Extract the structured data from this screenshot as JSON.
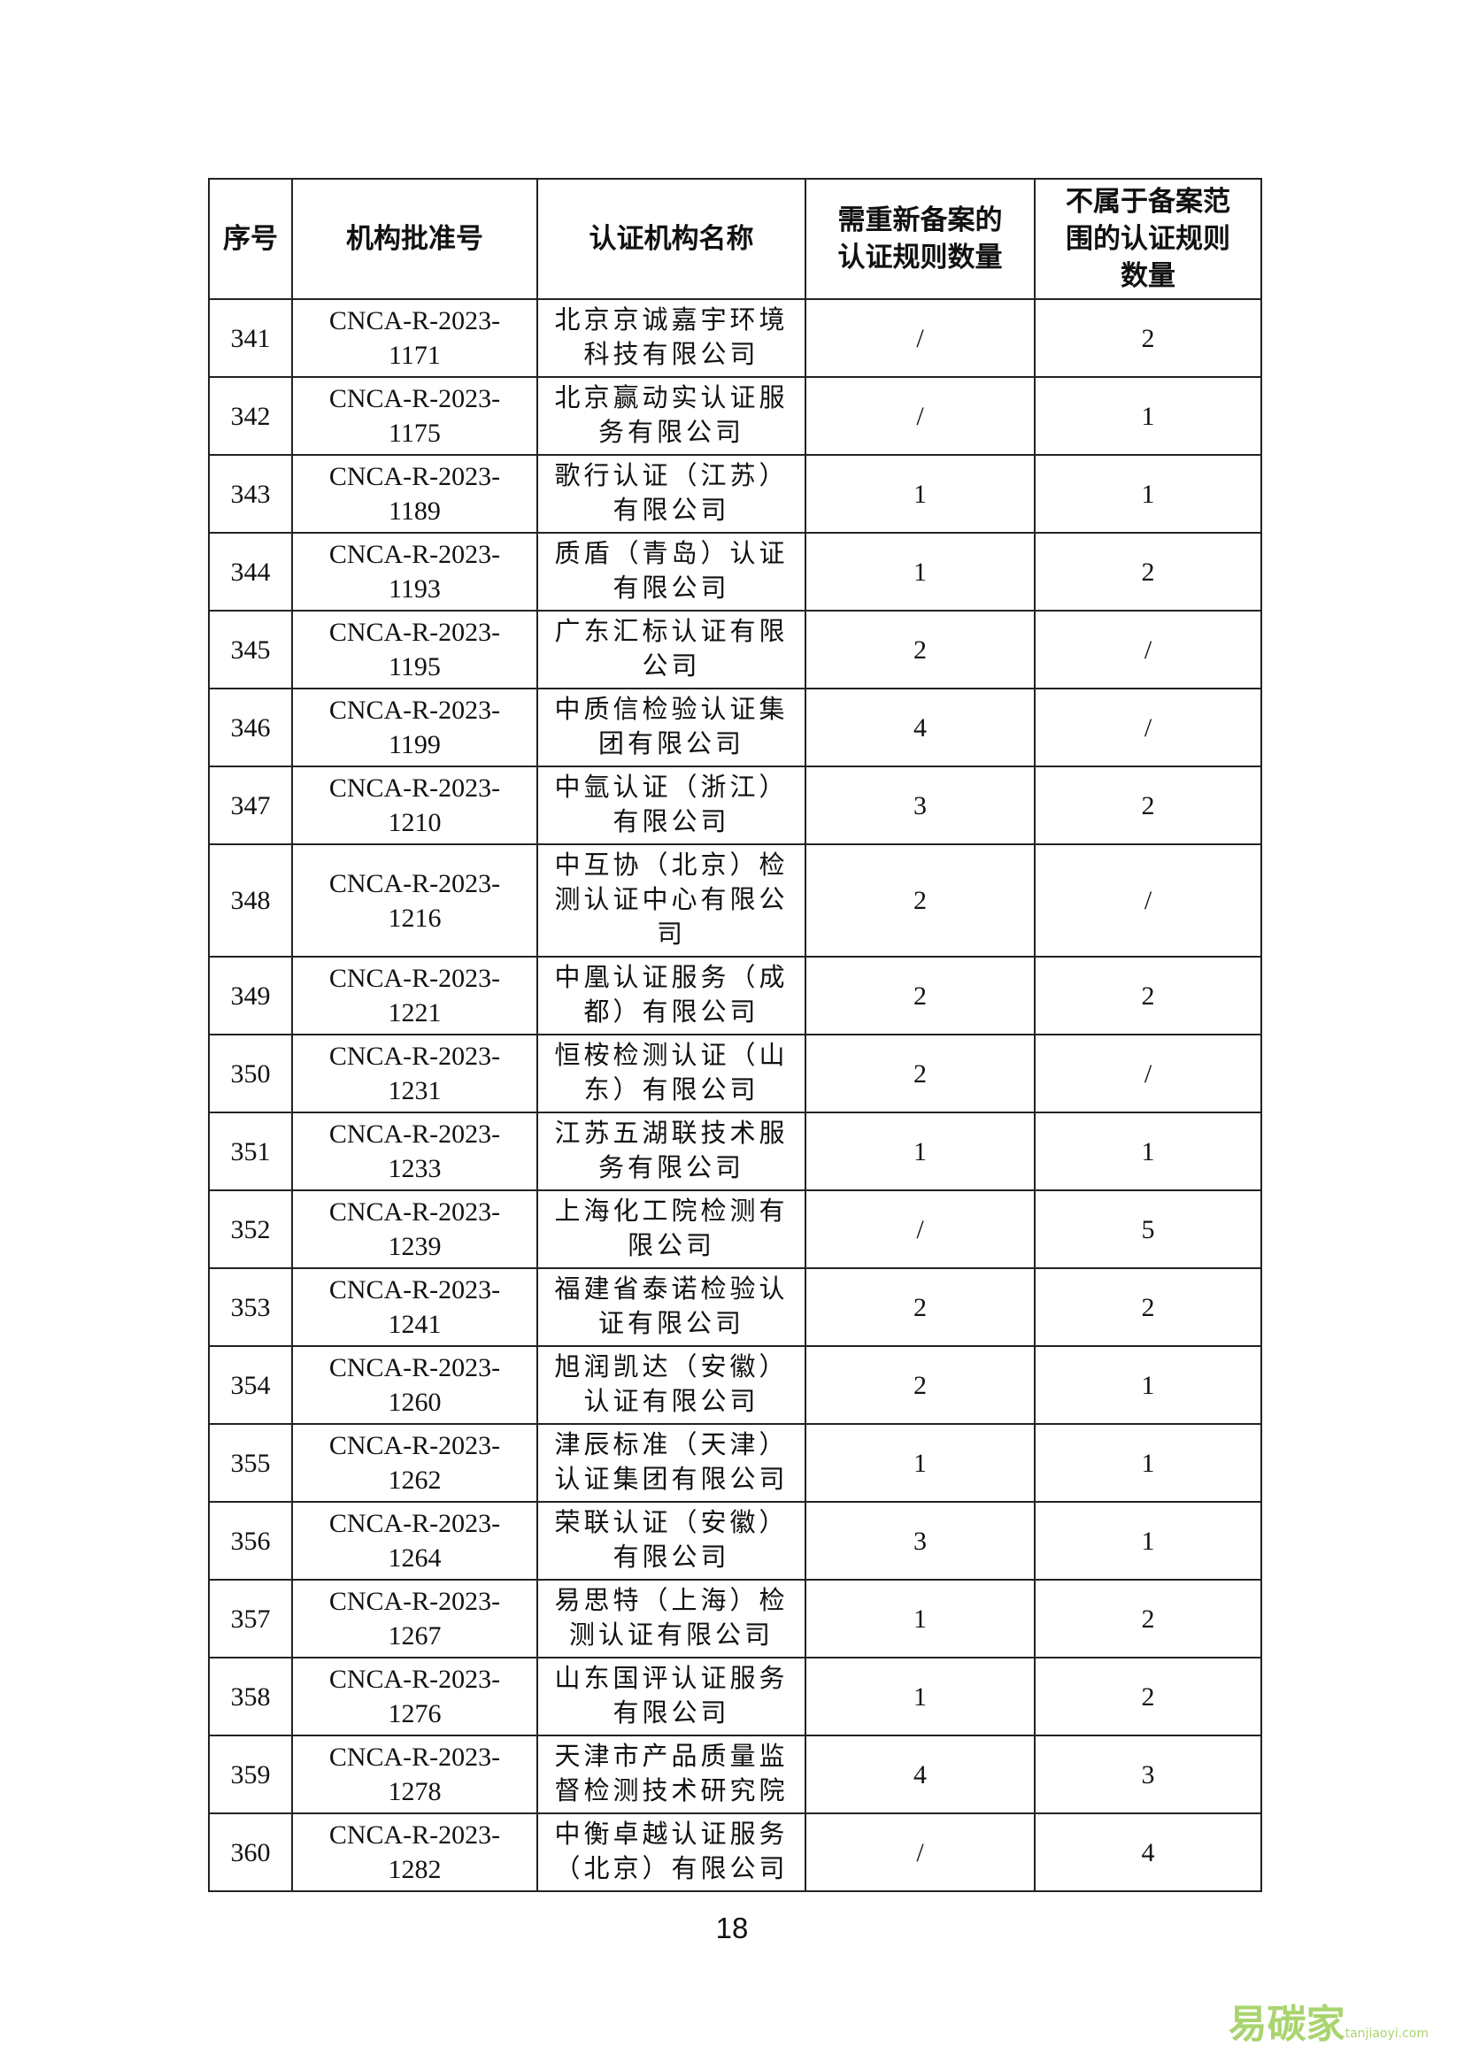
{
  "table": {
    "header": [
      "序号",
      "机构批准号",
      "认证机构名称",
      "需重新备案的认证规则数量",
      "不属于备案范围的认证规则数量"
    ],
    "rows": [
      [
        "341",
        "CNCA-R-2023-1171",
        "北京京诚嘉宇环境科技有限公司",
        "/",
        "2"
      ],
      [
        "342",
        "CNCA-R-2023-1175",
        "北京赢动实认证服务有限公司",
        "/",
        "1"
      ],
      [
        "343",
        "CNCA-R-2023-1189",
        "歌行认证（江苏）有限公司",
        "1",
        "1"
      ],
      [
        "344",
        "CNCA-R-2023-1193",
        "质盾（青岛）认证有限公司",
        "1",
        "2"
      ],
      [
        "345",
        "CNCA-R-2023-1195",
        "广东汇标认证有限公司",
        "2",
        "/"
      ],
      [
        "346",
        "CNCA-R-2023-1199",
        "中质信检验认证集团有限公司",
        "4",
        "/"
      ],
      [
        "347",
        "CNCA-R-2023-1210",
        "中氩认证（浙江）有限公司",
        "3",
        "2"
      ],
      [
        "348",
        "CNCA-R-2023-1216",
        "中互协（北京）检测认证中心有限公司",
        "2",
        "/"
      ],
      [
        "349",
        "CNCA-R-2023-1221",
        "中凰认证服务（成都）有限公司",
        "2",
        "2"
      ],
      [
        "350",
        "CNCA-R-2023-1231",
        "恒桉检测认证（山东）有限公司",
        "2",
        "/"
      ],
      [
        "351",
        "CNCA-R-2023-1233",
        "江苏五湖联技术服务有限公司",
        "1",
        "1"
      ],
      [
        "352",
        "CNCA-R-2023-1239",
        "上海化工院检测有限公司",
        "/",
        "5"
      ],
      [
        "353",
        "CNCA-R-2023-1241",
        "福建省泰诺检验认证有限公司",
        "2",
        "2"
      ],
      [
        "354",
        "CNCA-R-2023-1260",
        "旭润凯达（安徽）认证有限公司",
        "2",
        "1"
      ],
      [
        "355",
        "CNCA-R-2023-1262",
        "津辰标准（天津）认证集团有限公司",
        "1",
        "1"
      ],
      [
        "356",
        "CNCA-R-2023-1264",
        "荣联认证（安徽）有限公司",
        "3",
        "1"
      ],
      [
        "357",
        "CNCA-R-2023-1267",
        "易思特（上海）检测认证有限公司",
        "1",
        "2"
      ],
      [
        "358",
        "CNCA-R-2023-1276",
        "山东国评认证服务有限公司",
        "1",
        "2"
      ],
      [
        "359",
        "CNCA-R-2023-1278",
        "天津市产品质量监督检测技术研究院",
        "4",
        "3"
      ],
      [
        "360",
        "CNCA-R-2023-1282",
        "中衡卓越认证服务（北京）有限公司",
        "/",
        "4"
      ]
    ]
  },
  "page_number": "18",
  "watermark": {
    "brand": "易碳家",
    "site": "tanjiaoyi.com"
  }
}
